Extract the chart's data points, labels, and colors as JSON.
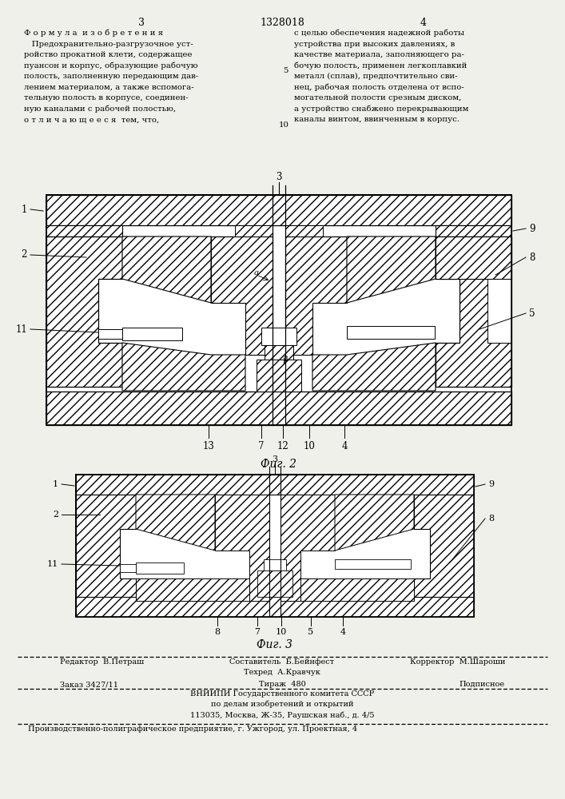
{
  "page_width": 7.07,
  "page_height": 10.0,
  "bg_color": "#f0f0eb",
  "header_page_left": "3",
  "header_center": "1328018",
  "header_page_right": "4",
  "left_col_text": [
    "Ф о р м у л а  и з о б р е т е н и я",
    "   Предохранительно-разгрузочное уст-",
    "ройство прокатной клети, содержащее",
    "пуансон и корпус, образующие рабочую",
    "полость, заполненную передающим дав-",
    "лением материалом, а также вспомога-",
    "тельную полость в корпусе, соединен-",
    "ную каналами с рабочей полостью,",
    "о т л и ч а ю щ е е с я  тем, что,"
  ],
  "right_col_text": [
    "с целью обеспечения надежной работы",
    "устройства при высоких давлениях, в",
    "качестве материала, заполняющего ра-",
    "бочую полость, применен легкоплавкий",
    "металл (сплав), предпочтительно сви-",
    "нец, рабочая полость отделена от вспо-",
    "могательной полости срезным диском,",
    "а устройство снабжено перекрывающим",
    "каналы винтом, ввинченным в корпус."
  ],
  "fig2_label": "Фиг. 2",
  "fig3_label": "Фиг. 3",
  "footer_editor": "Редактор  В.Петраш",
  "footer_composer": "Составитель  Б.Бейнфест",
  "footer_corrector": "Корректор  М.Шароши",
  "footer_techred": "Техред  А.Кравчук",
  "footer_order": "Заказ 3427/11",
  "footer_circulation": "Тираж  480",
  "footer_subscription": "Подписное",
  "footer_vniiipi": "ВНИИПИ Государственного комитета СССР",
  "footer_affairs": "по делам изобретений и открытий",
  "footer_address": "113035, Москва, Ж-35, Раушская наб., д. 4/5",
  "footer_production": "Производственно-полиграфическое предприятие, г. Ужгород, ул. Проектная, 4"
}
